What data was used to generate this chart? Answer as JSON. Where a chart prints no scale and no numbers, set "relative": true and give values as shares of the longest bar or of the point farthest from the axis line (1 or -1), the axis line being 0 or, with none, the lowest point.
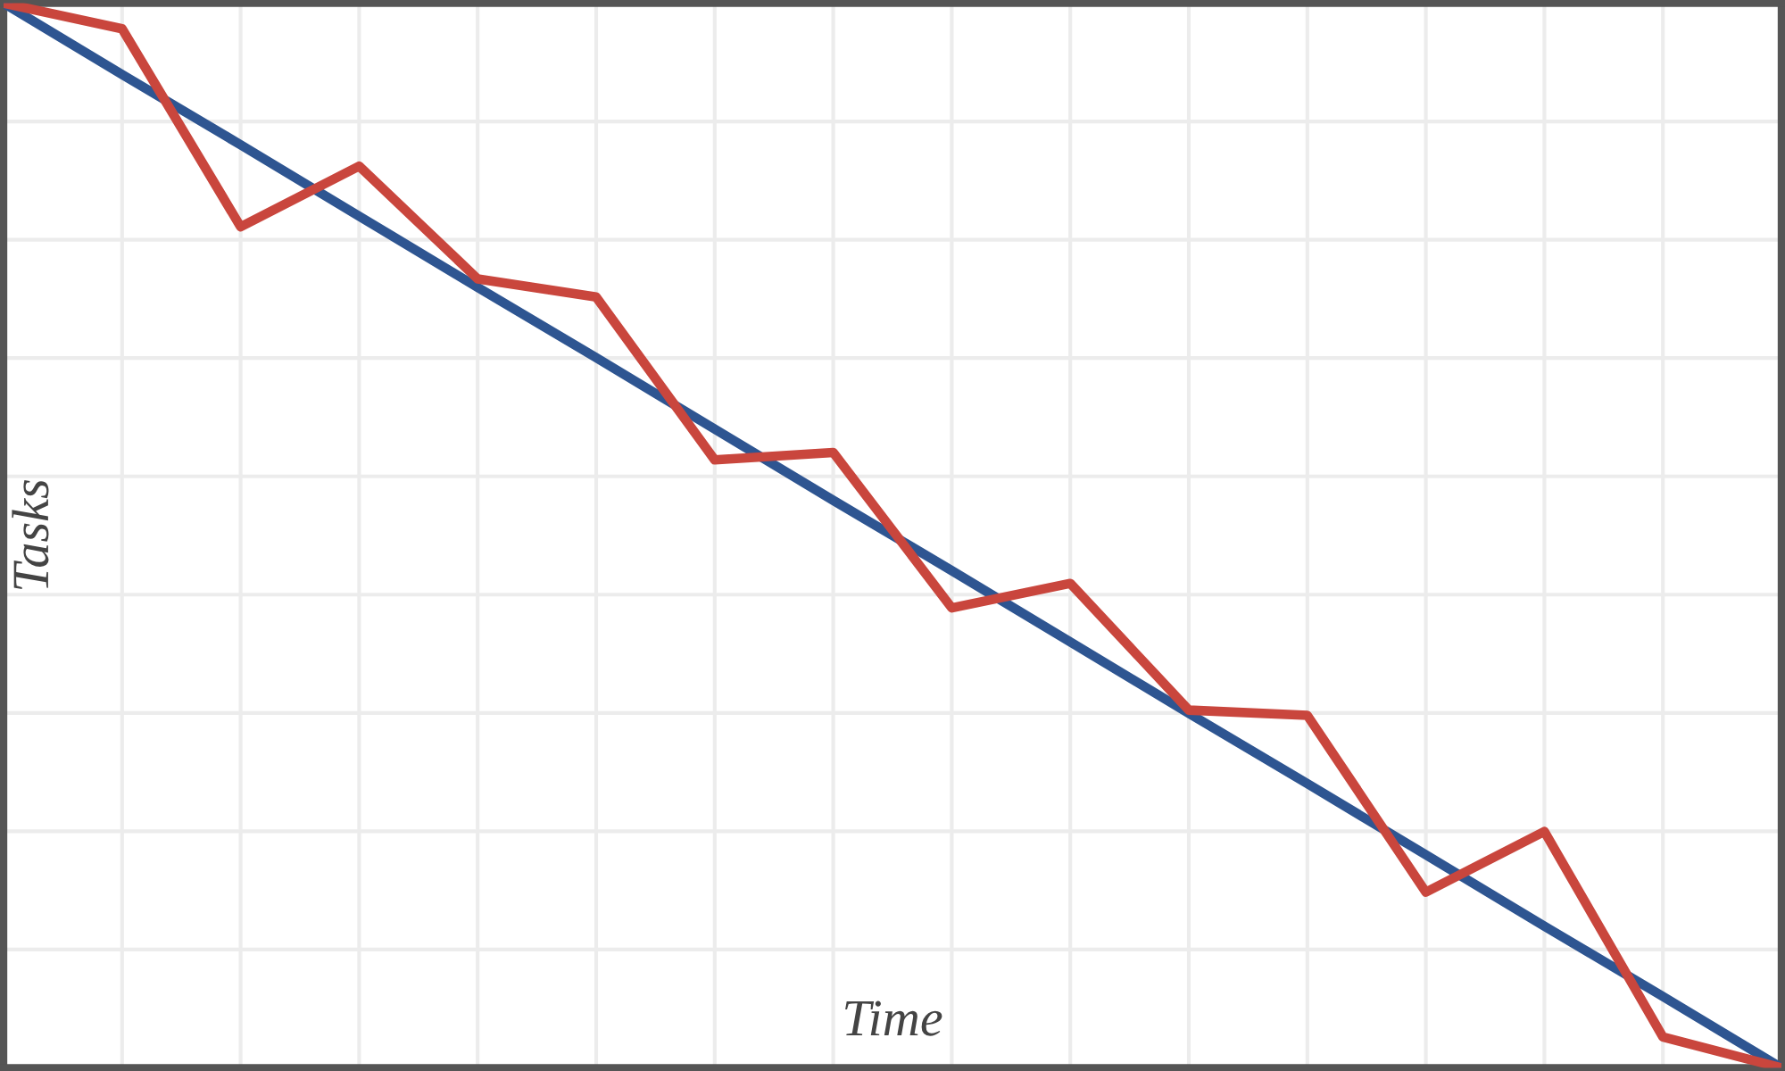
{
  "chart_data": {
    "type": "line",
    "xlabel": "Time",
    "ylabel": "Tasks",
    "relative": true,
    "grid": true,
    "legend": false,
    "marker": "none",
    "line_style": "solid",
    "tick_labels": false,
    "categories": [
      null,
      null,
      null,
      null,
      null,
      null,
      null,
      null,
      null,
      null,
      null,
      null,
      null,
      null,
      null,
      null
    ],
    "series": [
      {
        "color": "#2e5591",
        "values": [
          1,
          0.933,
          0.867,
          0.8,
          0.733,
          0.667,
          0.6,
          0.533,
          0.467,
          0.4,
          0.333,
          0.267,
          0.2,
          0.133,
          0.067,
          0
        ]
      },
      {
        "color": "#c9463d",
        "values": [
          1,
          0.976,
          0.79,
          0.847,
          0.741,
          0.724,
          0.571,
          0.578,
          0.432,
          0.455,
          0.336,
          0.331,
          0.165,
          0.222,
          0.029,
          0
        ]
      }
    ]
  }
}
